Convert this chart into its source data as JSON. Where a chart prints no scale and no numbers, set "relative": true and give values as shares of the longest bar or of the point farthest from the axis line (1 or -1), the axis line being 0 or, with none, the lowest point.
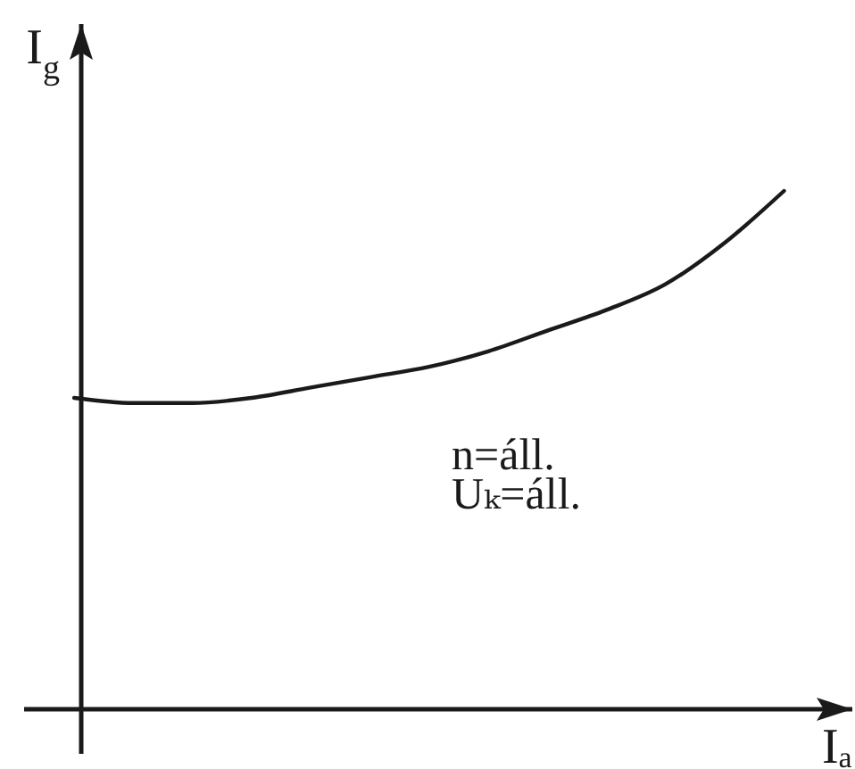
{
  "chart_data": {
    "type": "line",
    "relative": true,
    "xlabel": "Iₐ",
    "ylabel": "I$_{g}$",
    "categories": [
      null,
      null,
      null,
      null,
      null,
      null,
      null,
      null,
      null,
      null,
      null,
      null,
      null
    ],
    "series": [
      {
        "color": "#1a1a1a",
        "values": [
          0.6,
          0.59,
          0.59,
          0.6,
          0.62,
          0.64,
          0.66,
          0.69,
          0.73,
          0.77,
          0.82,
          0.9,
          1
        ]
      }
    ],
    "annotations": [
      "n=áll.",
      "Uₖ=áll."
    ]
  }
}
